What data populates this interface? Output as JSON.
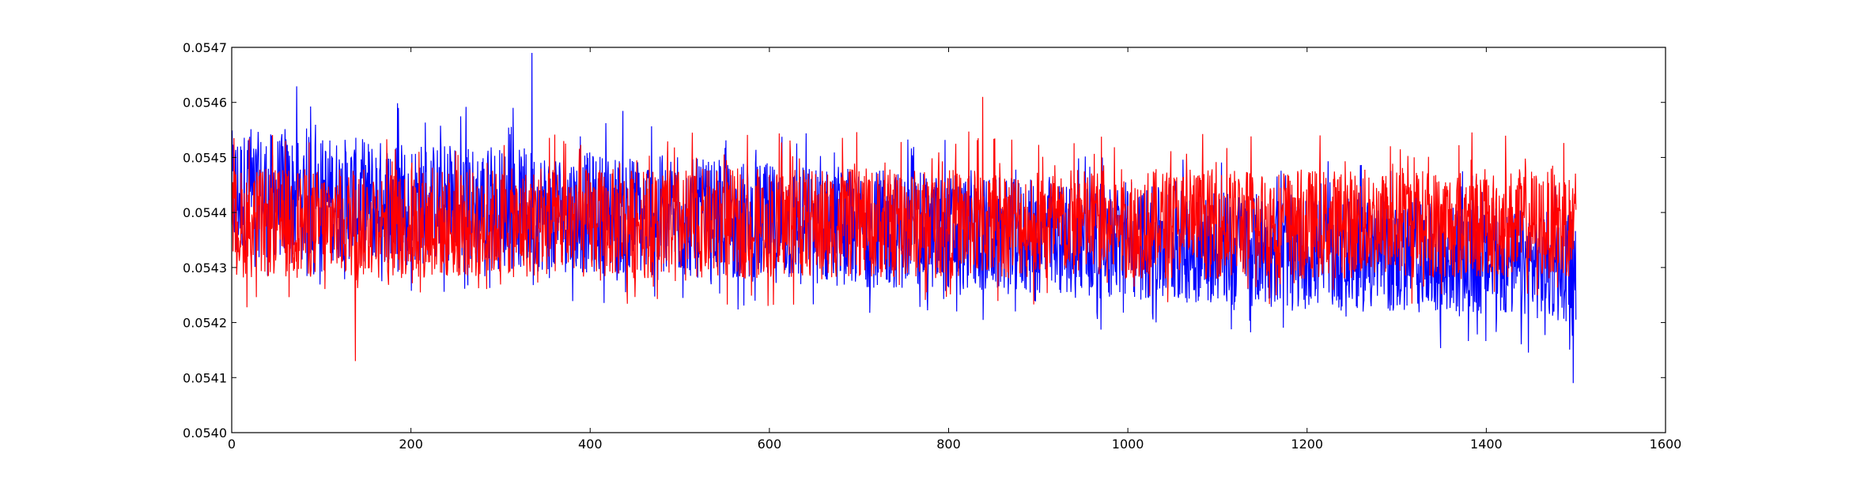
{
  "chart_data": {
    "type": "line",
    "title": "",
    "xlabel": "",
    "ylabel": "",
    "xlim": [
      0,
      1600
    ],
    "ylim": [
      0.054,
      0.0547
    ],
    "x_ticks": [
      0,
      200,
      400,
      600,
      800,
      1000,
      1200,
      1400,
      1600
    ],
    "x_tick_labels": [
      "0",
      "200",
      "400",
      "600",
      "800",
      "1000",
      "1200",
      "1400",
      "1600"
    ],
    "y_ticks": [
      0.054,
      0.0541,
      0.0542,
      0.0543,
      0.0544,
      0.0545,
      0.0546,
      0.0547
    ],
    "y_tick_labels": [
      "0.0540",
      "0.0541",
      "0.0542",
      "0.0543",
      "0.0544",
      "0.0545",
      "0.0546",
      "0.0547"
    ],
    "grid": false,
    "legend": "none",
    "x_range": [
      0,
      1500
    ],
    "series": [
      {
        "color": "#0000ff",
        "trend_start": 0.0544,
        "trend_end": 0.0543,
        "band_start": [
          0.05432,
          0.05455
        ],
        "band_end": [
          0.0542,
          0.0544
        ],
        "max_point": {
          "x": 335,
          "y": 0.05469
        },
        "min_point": {
          "x": 1497,
          "y": 0.05409
        }
      },
      {
        "color": "#ff0000",
        "trend_start": 0.05437,
        "trend_end": 0.05436,
        "band_start": [
          0.05428,
          0.05448
        ],
        "band_end": [
          0.05428,
          0.05448
        ],
        "max_point": {
          "x": 838,
          "y": 0.05461
        },
        "min_point": {
          "x": 138,
          "y": 0.05413
        }
      }
    ]
  }
}
